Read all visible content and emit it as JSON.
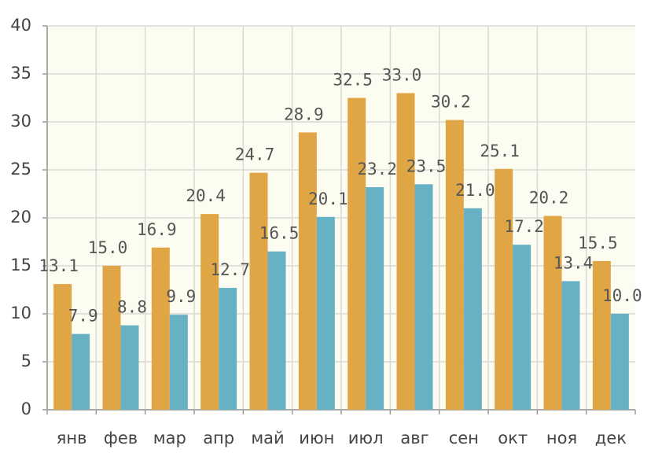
{
  "chart_data": {
    "type": "bar",
    "categories": [
      "янв",
      "фев",
      "мар",
      "апр",
      "май",
      "июн",
      "июл",
      "авг",
      "сен",
      "окт",
      "ноя",
      "дек"
    ],
    "series": [
      {
        "color": "#e0a544",
        "values": [
          13.1,
          15.0,
          16.9,
          20.4,
          24.7,
          28.9,
          32.5,
          33.0,
          30.2,
          25.1,
          20.2,
          15.5
        ],
        "value_labels": [
          "13.1",
          "15.0",
          "16.9",
          "20.4",
          "24.7",
          "28.9",
          "32.5",
          "33.0",
          "30.2",
          "25.1",
          "20.2",
          "15.5"
        ]
      },
      {
        "color": "#66b1c4",
        "values": [
          7.9,
          8.8,
          9.9,
          12.7,
          16.5,
          20.1,
          23.2,
          23.5,
          21.0,
          17.2,
          13.4,
          10.0
        ],
        "value_labels": [
          "7.9",
          "8.8",
          "9.9",
          "12.7",
          "16.5",
          "20.1",
          "23.2",
          "23.5",
          "21.0",
          "17.2",
          "13.4",
          "10.0"
        ]
      }
    ],
    "ylim": [
      0,
      40
    ],
    "yticks": [
      0,
      5,
      10,
      15,
      20,
      25,
      30,
      35,
      40
    ],
    "grid": true
  }
}
